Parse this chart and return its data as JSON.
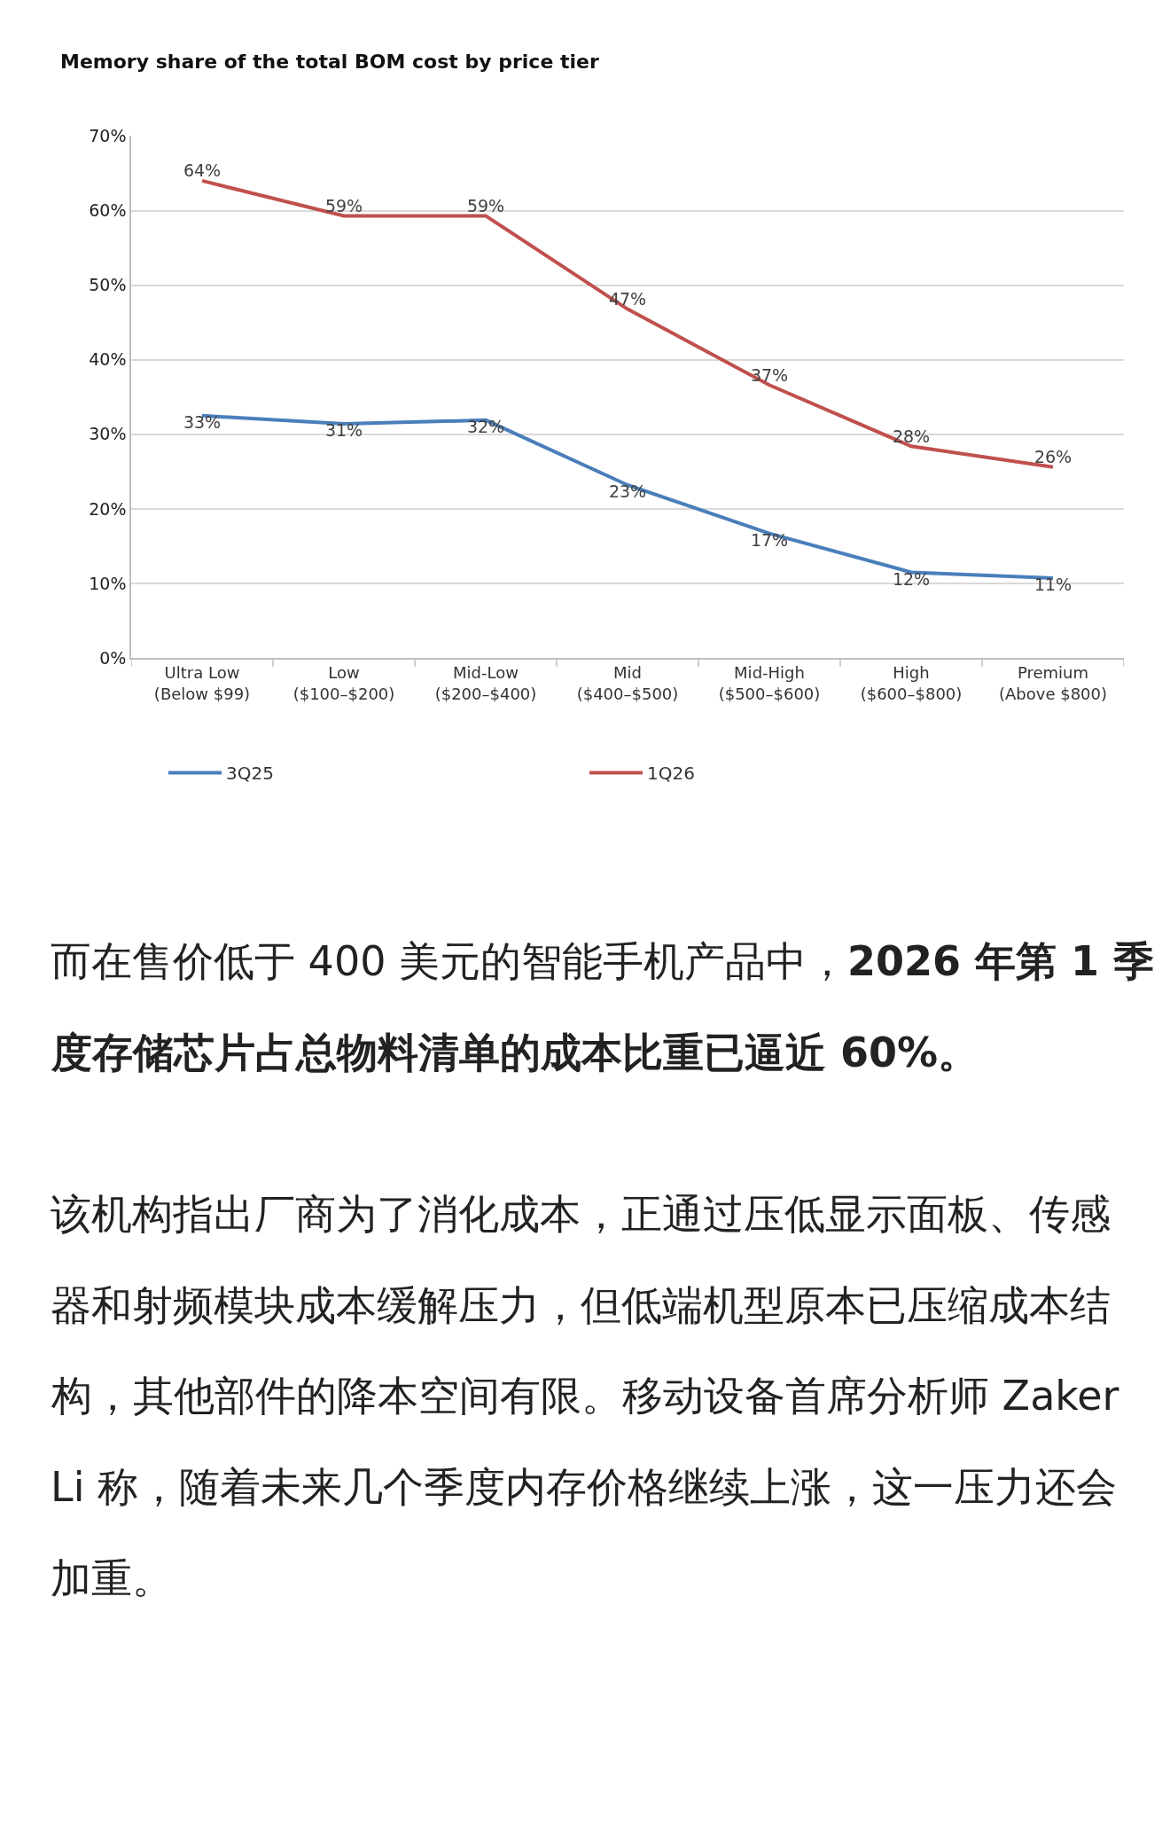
{
  "chart_data": {
    "type": "line",
    "title": "Memory share of the total BOM cost by price tier",
    "categories": [
      "Ultra Low\n(Below $99)",
      "Low\n($100–$200)",
      "Mid-Low\n($200–$400)",
      "Mid\n($400–$500)",
      "Mid-High\n($500–$600)",
      "High\n($600–$800)",
      "Premium\n(Above $800)"
    ],
    "series": [
      {
        "name": "3Q25",
        "color": "#4a7ebb",
        "values": [
          32.5,
          31.4,
          31.9,
          23.2,
          16.7,
          11.5,
          10.7
        ],
        "value_labels": [
          "33%",
          "31%",
          "32%",
          "23%",
          "17%",
          "12%",
          "11%"
        ]
      },
      {
        "name": "1Q26",
        "color": "#c0504d",
        "values": [
          64.0,
          59.3,
          59.3,
          46.8,
          36.6,
          28.4,
          25.6
        ],
        "value_labels": [
          "64%",
          "59%",
          "59%",
          "47%",
          "37%",
          "28%",
          "26%"
        ]
      }
    ],
    "ylim": [
      0,
      70
    ],
    "yticks": [
      {
        "value": 0,
        "label": "0%"
      },
      {
        "value": 10,
        "label": "10%"
      },
      {
        "value": 20,
        "label": "20%"
      },
      {
        "value": 30,
        "label": "30%"
      },
      {
        "value": 40,
        "label": "40%"
      },
      {
        "value": 50,
        "label": "50%"
      },
      {
        "value": 60,
        "label": "60%"
      },
      {
        "value": 70,
        "label": "70%"
      }
    ],
    "grid": "y",
    "legend": "bottom",
    "marker": "none",
    "line_style": "solid",
    "annotations": [
      "而在售价低于 400 美元的智能手机产品中，",
      "2026 年第 1 季度存储芯片占总物料清单的成本比重已逼近 60%。",
      "该机构指出厂商为了消化成本，正通过压低显示面板、传感器和射频模块成本缓解压力，但低端机型原本已压缩成本结构，其他部件的降本空间有限。移动设备首席分析师 Zaker Li 称，随着未来几个季度内存价格继续上涨，这一压力还会加重。"
    ]
  }
}
